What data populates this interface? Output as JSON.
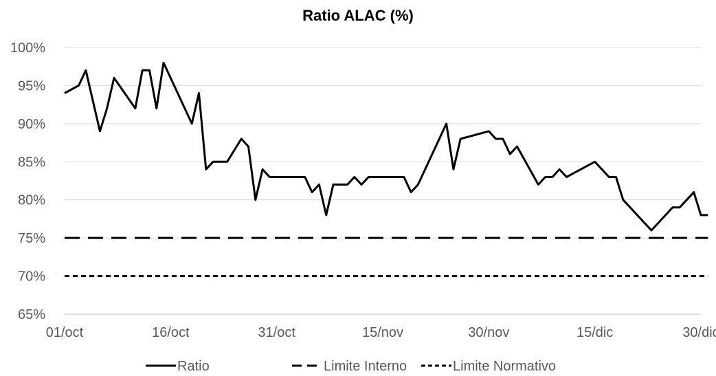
{
  "chart_data": {
    "type": "line",
    "title": "Ratio ALAC (%)",
    "xlabel": "",
    "ylabel": "",
    "ylim": [
      65,
      100
    ],
    "y_ticks": [
      "65%",
      "70%",
      "75%",
      "80%",
      "85%",
      "90%",
      "95%",
      "100%"
    ],
    "x_ticks": [
      "01/oct",
      "16/oct",
      "31/oct",
      "15/nov",
      "30/nov",
      "15/dic",
      "30/dic"
    ],
    "grid": true,
    "legend_placement": "bottom",
    "series": [
      {
        "name": "Ratio",
        "color": "#000000",
        "style": "solid",
        "x": [
          "01/oct",
          "03/oct",
          "04/oct",
          "06/oct",
          "07/oct",
          "08/oct",
          "11/oct",
          "12/oct",
          "13/oct",
          "14/oct",
          "15/oct",
          "19/oct",
          "20/oct",
          "21/oct",
          "22/oct",
          "24/oct",
          "26/oct",
          "27/oct",
          "28/oct",
          "29/oct",
          "30/oct",
          "04/nov",
          "05/nov",
          "06/nov",
          "07/nov",
          "08/nov",
          "10/nov",
          "11/nov",
          "12/nov",
          "13/nov",
          "18/nov",
          "19/nov",
          "20/nov",
          "24/nov",
          "25/nov",
          "26/nov",
          "30/nov",
          "01/dic",
          "02/dic",
          "03/dic",
          "04/dic",
          "07/dic",
          "08/dic",
          "09/dic",
          "10/dic",
          "11/dic",
          "15/dic",
          "16/dic",
          "17/dic",
          "18/dic",
          "19/dic",
          "23/dic",
          "24/dic",
          "25/dic",
          "26/dic",
          "27/dic",
          "29/dic",
          "30/dic",
          "31/dic"
        ],
        "values": [
          94,
          95,
          97,
          89,
          92,
          96,
          92,
          97,
          97,
          92,
          98,
          90,
          94,
          84,
          85,
          85,
          88,
          87,
          80,
          84,
          83,
          83,
          81,
          82,
          78,
          82,
          82,
          83,
          82,
          83,
          83,
          81,
          82,
          90,
          84,
          88,
          89,
          88,
          88,
          86,
          87,
          82,
          83,
          83,
          84,
          83,
          85,
          84,
          83,
          83,
          80,
          76,
          77,
          78,
          79,
          79,
          81,
          78,
          78
        ]
      },
      {
        "name": "Limite Interno",
        "color": "#000000",
        "style": "dashed",
        "x": [
          "01/oct",
          "31/dic"
        ],
        "values": [
          75,
          75
        ]
      },
      {
        "name": "Limite Normativo",
        "color": "#000000",
        "style": "dotted",
        "x": [
          "01/oct",
          "31/dic"
        ],
        "values": [
          70,
          70
        ]
      }
    ]
  }
}
